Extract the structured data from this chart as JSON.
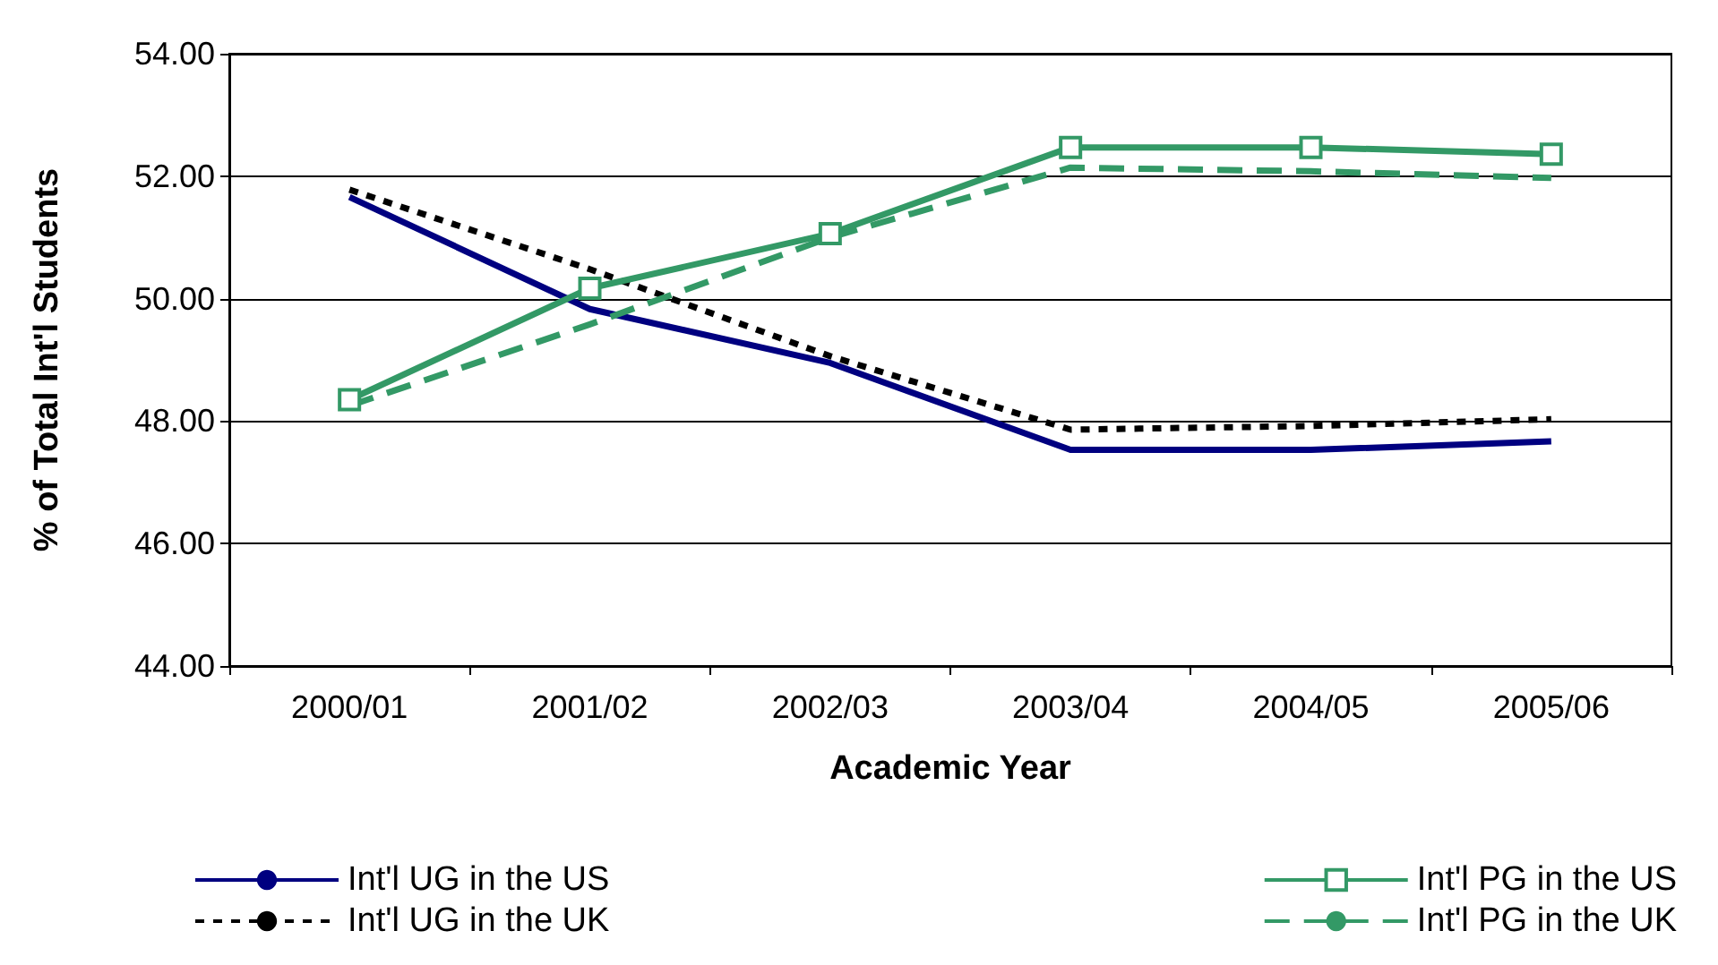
{
  "chart_data": {
    "type": "line",
    "xlabel": "Academic Year",
    "ylabel": "% of Total Int'l Students",
    "categories": [
      "2000/01",
      "2001/02",
      "2002/03",
      "2003/04",
      "2004/05",
      "2005/06"
    ],
    "ylim": [
      44,
      54
    ],
    "yticks": [
      {
        "value": 44,
        "label": "44.00"
      },
      {
        "value": 46,
        "label": "46.00"
      },
      {
        "value": 48,
        "label": "48.00"
      },
      {
        "value": 50,
        "label": "50.00"
      },
      {
        "value": 52,
        "label": "52.00"
      },
      {
        "value": 54,
        "label": "54.00"
      }
    ],
    "grid": "y",
    "legend": "bottom",
    "series": [
      {
        "name": "Int'l UG in the US",
        "color": "#000080",
        "line_style": "solid",
        "marker": "none",
        "values": [
          51.66,
          49.83,
          48.95,
          47.53,
          47.53,
          47.67
        ]
      },
      {
        "name": "Int'l UG in the UK",
        "color": "#000000",
        "line_style": "dotted",
        "marker": "none",
        "values": [
          51.78,
          50.48,
          49.06,
          47.86,
          47.92,
          48.03
        ]
      },
      {
        "name": "Int'l PG in the US",
        "color": "#339966",
        "line_style": "solid",
        "marker": "square",
        "values": [
          48.35,
          50.17,
          51.06,
          52.47,
          52.47,
          52.36
        ]
      },
      {
        "name": "Int'l PG in the UK",
        "color": "#339966",
        "line_style": "dashed",
        "marker": "none",
        "values": [
          48.25,
          49.58,
          51.0,
          52.14,
          52.08,
          51.97
        ]
      }
    ]
  }
}
